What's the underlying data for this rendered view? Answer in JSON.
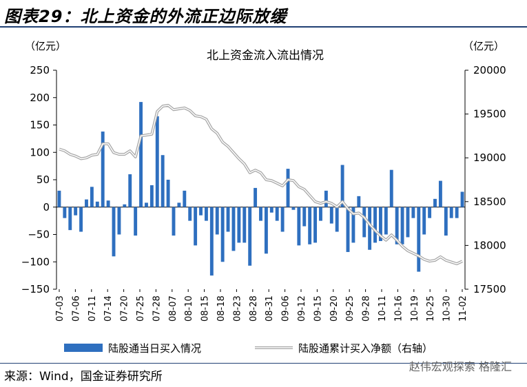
{
  "header": {
    "title": "图表29：北上资金的外流正边际放缓"
  },
  "footer": {
    "source": "来源：Wind，国金证券研究所",
    "watermark": "赵伟宏观探索 格隆汇"
  },
  "chart_data": {
    "type": "bar+line",
    "title": "北上资金流入流出情况",
    "left_unit": "（亿元）",
    "right_unit": "（亿元）",
    "left_ylim": [
      -150,
      250
    ],
    "left_ticks": [
      250,
      200,
      150,
      100,
      50,
      0,
      -50,
      -100,
      -150
    ],
    "right_ylim": [
      17500,
      20000
    ],
    "right_ticks": [
      20000,
      19500,
      19000,
      18500,
      18000,
      17500
    ],
    "x_tick_labels": [
      "07-03",
      "07-06",
      "07-11",
      "07-14",
      "07-20",
      "07-25",
      "07-28",
      "08-07",
      "08-10",
      "08-15",
      "08-18",
      "08-23",
      "08-28",
      "08-31",
      "09-06",
      "09-12",
      "09-15",
      "09-20",
      "09-25",
      "09-28",
      "10-11",
      "10-16",
      "10-19",
      "10-25",
      "10-30",
      "11-02"
    ],
    "bar_color": "#2e6fbf",
    "line_color": "#a6a6a6",
    "series": [
      {
        "name": "陆股通当日买入情况",
        "values": [
          30,
          -20,
          -42,
          -15,
          -45,
          14,
          37,
          10,
          138,
          12,
          -90,
          -50,
          5,
          60,
          -52,
          192,
          8,
          40,
          166,
          95,
          50,
          -52,
          8,
          30,
          -25,
          -70,
          -15,
          -25,
          -125,
          -50,
          -100,
          -45,
          -80,
          -65,
          -65,
          -107,
          35,
          -25,
          -85,
          -10,
          -25,
          -45,
          70,
          -5,
          -70,
          -35,
          -68,
          -65,
          -25,
          30,
          -30,
          -45,
          77,
          -82,
          -65,
          20,
          -55,
          -78,
          -65,
          -62,
          -50,
          68,
          -68,
          -68,
          -55,
          -20,
          -118,
          -50,
          -20,
          15,
          48,
          -52,
          -20,
          -20,
          28
        ]
      },
      {
        "name": "陆股通累计买入净额（右轴）",
        "values": [
          19100,
          19080,
          19040,
          19020,
          18990,
          19000,
          19030,
          19040,
          19160,
          19160,
          19060,
          19040,
          19040,
          19080,
          19010,
          19250,
          19260,
          19270,
          19530,
          19590,
          19600,
          19550,
          19560,
          19570,
          19540,
          19480,
          19470,
          19440,
          19330,
          19280,
          19180,
          19130,
          19060,
          18990,
          18930,
          18830,
          18860,
          18830,
          18750,
          18740,
          18710,
          18680,
          18750,
          18740,
          18670,
          18640,
          18570,
          18500,
          18480,
          18500,
          18480,
          18440,
          18500,
          18420,
          18360,
          18370,
          18320,
          18240,
          18170,
          18110,
          18060,
          18120,
          18060,
          17990,
          17940,
          17910,
          17880,
          17840,
          17820,
          17830,
          17870,
          17830,
          17810,
          17790,
          17820
        ]
      }
    ],
    "legend": [
      "陆股通当日买入情况",
      "陆股通累计买入净额（右轴）"
    ],
    "legend_position": "bottom"
  }
}
